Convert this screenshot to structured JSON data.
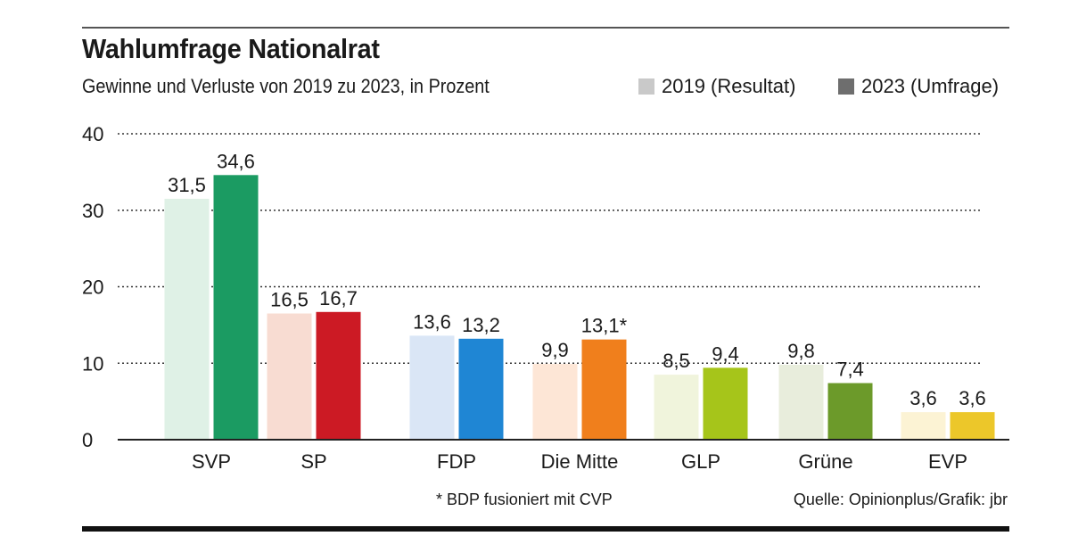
{
  "header": {
    "title": "Wahlumfrage Nationalrat",
    "subtitle": "Gewinne und Verluste von 2019 zu 2023, in Prozent"
  },
  "legend": [
    {
      "label": "2019 (Resultat)",
      "color": "#c9c9c9"
    },
    {
      "label": "2023 (Umfrage)",
      "color": "#6e6e6e"
    }
  ],
  "footer": {
    "footnote": "* BDP fusioniert mit CVP",
    "source": "Quelle: Opinionplus/Grafik: jbr"
  },
  "chart_data": {
    "type": "bar",
    "title": "Wahlumfrage Nationalrat",
    "subtitle": "Gewinne und Verluste von 2019 zu 2023, in Prozent",
    "categories": [
      "SVP",
      "SP",
      "FDP",
      "Die Mitte",
      "GLP",
      "Grüne",
      "EVP"
    ],
    "series": [
      {
        "name": "2019 (Resultat)",
        "values": [
          31.5,
          16.5,
          13.6,
          9.9,
          8.5,
          9.8,
          3.6
        ],
        "labels": [
          "31,5",
          "16,5",
          "13,6",
          "9,9",
          "8,5",
          "9,8",
          "3,6"
        ],
        "colors": [
          "#dff1e6",
          "#f8dcd2",
          "#dae6f6",
          "#fde6d6",
          "#f0f4dc",
          "#e8eddc",
          "#fcf3d4"
        ]
      },
      {
        "name": "2023 (Umfrage)",
        "values": [
          34.6,
          16.7,
          13.2,
          13.1,
          9.4,
          7.4,
          3.6
        ],
        "labels": [
          "34,6",
          "16,7",
          "13,2",
          "13,1*",
          "9,4",
          "7,4",
          "3,6"
        ],
        "colors": [
          "#1b9b62",
          "#cc1a24",
          "#1f86d4",
          "#f07f1c",
          "#a6c51a",
          "#6c9a2a",
          "#ecc72a"
        ]
      }
    ],
    "yticks": [
      "0",
      "10",
      "20",
      "30",
      "40"
    ],
    "ylim": [
      0,
      40
    ],
    "grid": true,
    "legend_position": "top-right"
  }
}
